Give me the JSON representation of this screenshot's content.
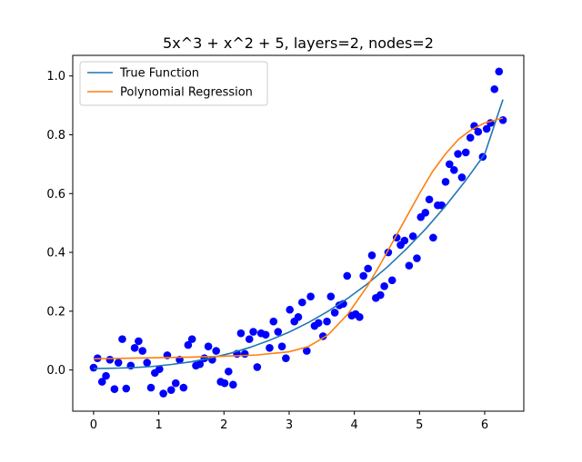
{
  "chart_data": {
    "type": "scatter",
    "title": "5x^3 + x^2 + 5, layers=2, nodes=2",
    "xlabel": "",
    "ylabel": "",
    "xlim": [
      -0.32,
      6.6
    ],
    "ylim": [
      -0.14,
      1.07
    ],
    "x_ticks": [
      "0",
      "1",
      "2",
      "3",
      "4",
      "5",
      "6"
    ],
    "y_ticks": [
      "0.0",
      "0.2",
      "0.4",
      "0.6",
      "0.8",
      "1.0"
    ],
    "x_tick_values": [
      0,
      1,
      2,
      3,
      4,
      5,
      6
    ],
    "y_tick_values": [
      0.0,
      0.2,
      0.4,
      0.6,
      0.8,
      1.0
    ],
    "grid": false,
    "legend_position": "top-left",
    "colors": {
      "true_function": "#1f77b4",
      "polynomial_regression": "#ff7f0e",
      "points": "#0000ff"
    },
    "series": [
      {
        "name": "True Function",
        "type": "line",
        "x": [
          0,
          0.3,
          0.6,
          0.9,
          1.2,
          1.5,
          1.8,
          2.1,
          2.4,
          2.7,
          3.0,
          3.3,
          3.6,
          3.9,
          4.2,
          4.5,
          4.8,
          5.1,
          5.4,
          5.7,
          6.0,
          6.28
        ],
        "y": [
          0.005,
          0.006,
          0.008,
          0.012,
          0.019,
          0.028,
          0.041,
          0.057,
          0.077,
          0.101,
          0.129,
          0.162,
          0.2,
          0.244,
          0.293,
          0.349,
          0.412,
          0.481,
          0.558,
          0.642,
          0.734,
          0.92
        ]
      },
      {
        "name": "Polynomial Regression",
        "type": "line",
        "x": [
          0,
          0.5,
          1.0,
          1.5,
          2.0,
          2.5,
          3.0,
          3.3,
          3.6,
          3.9,
          4.2,
          4.4,
          4.6,
          4.8,
          5.0,
          5.2,
          5.4,
          5.6,
          5.8,
          6.0,
          6.28
        ],
        "y": [
          0.038,
          0.04,
          0.042,
          0.044,
          0.047,
          0.051,
          0.062,
          0.08,
          0.12,
          0.19,
          0.285,
          0.36,
          0.44,
          0.52,
          0.6,
          0.675,
          0.735,
          0.785,
          0.818,
          0.84,
          0.857
        ]
      },
      {
        "name": "",
        "type": "scatter",
        "x": [
          0.0,
          0.06,
          0.13,
          0.19,
          0.25,
          0.32,
          0.38,
          0.44,
          0.5,
          0.57,
          0.63,
          0.69,
          0.75,
          0.82,
          0.88,
          0.94,
          1.01,
          1.07,
          1.13,
          1.19,
          1.26,
          1.32,
          1.38,
          1.45,
          1.51,
          1.57,
          1.63,
          1.7,
          1.76,
          1.82,
          1.88,
          1.95,
          2.01,
          2.07,
          2.14,
          2.2,
          2.26,
          2.32,
          2.39,
          2.45,
          2.51,
          2.57,
          2.64,
          2.7,
          2.76,
          2.83,
          2.89,
          2.95,
          3.01,
          3.08,
          3.14,
          3.2,
          3.27,
          3.33,
          3.39,
          3.45,
          3.52,
          3.58,
          3.64,
          3.7,
          3.77,
          3.83,
          3.89,
          3.96,
          4.02,
          4.08,
          4.14,
          4.21,
          4.27,
          4.33,
          4.4,
          4.46,
          4.52,
          4.58,
          4.65,
          4.71,
          4.77,
          4.84,
          4.9,
          4.96,
          5.02,
          5.09,
          5.15,
          5.21,
          5.28,
          5.34,
          5.4,
          5.46,
          5.53,
          5.59,
          5.65,
          5.71,
          5.78,
          5.84,
          5.9,
          5.97,
          6.03,
          6.09,
          6.15,
          6.22,
          6.28
        ],
        "y": [
          0.008,
          0.04,
          -0.04,
          -0.02,
          0.035,
          -0.065,
          0.025,
          0.105,
          -0.063,
          0.015,
          0.075,
          0.098,
          0.065,
          0.025,
          -0.06,
          -0.01,
          0.003,
          -0.08,
          0.05,
          -0.068,
          -0.045,
          0.035,
          -0.06,
          0.085,
          0.105,
          0.015,
          0.02,
          0.04,
          0.08,
          0.035,
          0.065,
          -0.04,
          -0.045,
          -0.005,
          -0.05,
          0.055,
          0.125,
          0.055,
          0.105,
          0.13,
          0.01,
          0.125,
          0.12,
          0.075,
          0.165,
          0.13,
          0.08,
          0.04,
          0.205,
          0.165,
          0.18,
          0.23,
          0.065,
          0.25,
          0.15,
          0.16,
          0.115,
          0.165,
          0.25,
          0.195,
          0.22,
          0.225,
          0.32,
          0.185,
          0.19,
          0.18,
          0.32,
          0.345,
          0.39,
          0.245,
          0.255,
          0.285,
          0.4,
          0.305,
          0.45,
          0.425,
          0.44,
          0.355,
          0.455,
          0.38,
          0.52,
          0.535,
          0.58,
          0.45,
          0.56,
          0.56,
          0.64,
          0.7,
          0.68,
          0.735,
          0.655,
          0.74,
          0.79,
          0.83,
          0.81,
          0.725,
          0.82,
          0.84,
          0.955,
          1.015,
          0.85
        ]
      }
    ]
  }
}
